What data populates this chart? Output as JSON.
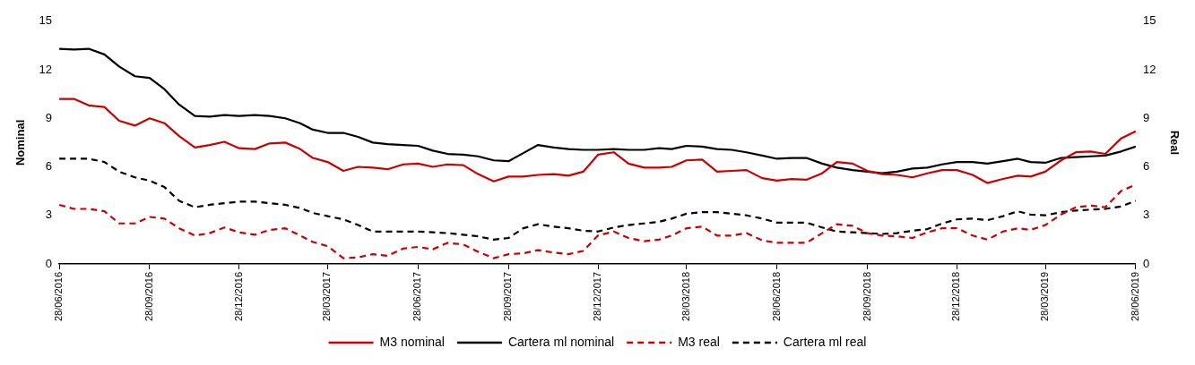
{
  "chart_data": {
    "type": "line",
    "ylabel": "Nominal",
    "y2label": "Real",
    "x": [
      "2016-06-28",
      "2016-07-13",
      "2016-07-28",
      "2016-08-13",
      "2016-08-28",
      "2016-09-13",
      "2016-09-28",
      "2016-10-13",
      "2016-10-28",
      "2016-11-13",
      "2016-11-28",
      "2016-12-13",
      "2016-12-28",
      "2017-01-13",
      "2017-01-28",
      "2017-02-13",
      "2017-02-28",
      "2017-03-13",
      "2017-03-28",
      "2017-04-13",
      "2017-04-28",
      "2017-05-13",
      "2017-05-28",
      "2017-06-13",
      "2017-06-28",
      "2017-07-13",
      "2017-07-28",
      "2017-08-13",
      "2017-08-28",
      "2017-09-13",
      "2017-09-28",
      "2017-10-13",
      "2017-10-28",
      "2017-11-13",
      "2017-11-28",
      "2017-12-13",
      "2017-12-28",
      "2018-01-13",
      "2018-01-28",
      "2018-02-13",
      "2018-02-28",
      "2018-03-13",
      "2018-03-28",
      "2018-04-13",
      "2018-04-28",
      "2018-05-13",
      "2018-05-28",
      "2018-06-13",
      "2018-06-28",
      "2018-07-13",
      "2018-07-28",
      "2018-08-13",
      "2018-08-28",
      "2018-09-13",
      "2018-09-28",
      "2018-10-13",
      "2018-10-28",
      "2018-11-13",
      "2018-11-28",
      "2018-12-13",
      "2018-12-28",
      "2019-01-13",
      "2019-01-28",
      "2019-02-13",
      "2019-02-28",
      "2019-03-13",
      "2019-03-28",
      "2019-04-13",
      "2019-04-28",
      "2019-05-13",
      "2019-05-28",
      "2019-06-13",
      "2019-06-28"
    ],
    "series": [
      {
        "name": "M3 nominal",
        "color": "#cc0000",
        "line_style": "solid",
        "values": [
          10.2,
          10.2,
          9.8,
          9.7,
          8.85,
          8.55,
          9.0,
          8.7,
          7.9,
          7.2,
          7.35,
          7.55,
          7.15,
          7.1,
          7.45,
          7.5,
          7.1,
          6.55,
          6.3,
          5.75,
          6.0,
          5.95,
          5.85,
          6.15,
          6.2,
          6.0,
          6.15,
          6.1,
          5.55,
          5.1,
          5.4,
          5.4,
          5.5,
          5.55,
          5.45,
          5.7,
          6.75,
          6.9,
          6.2,
          5.95,
          5.95,
          6.0,
          6.4,
          6.45,
          5.7,
          5.75,
          5.8,
          5.3,
          5.15,
          5.25,
          5.2,
          5.6,
          6.3,
          6.2,
          5.75,
          5.55,
          5.5,
          5.35,
          5.6,
          5.8,
          5.8,
          5.5,
          5.0,
          5.25,
          5.45,
          5.4,
          5.7,
          6.4,
          6.9,
          6.95,
          6.8,
          7.75,
          8.2
        ]
      },
      {
        "name": "Cartera ml nominal",
        "color": "#000000",
        "line_style": "solid",
        "values": [
          13.3,
          13.25,
          13.3,
          12.95,
          12.2,
          11.6,
          11.5,
          10.8,
          9.85,
          9.15,
          9.1,
          9.2,
          9.15,
          9.2,
          9.15,
          9.0,
          8.7,
          8.3,
          8.1,
          8.1,
          7.85,
          7.5,
          7.4,
          7.35,
          7.3,
          7.0,
          6.8,
          6.75,
          6.65,
          6.4,
          6.35,
          6.85,
          7.35,
          7.2,
          7.1,
          7.05,
          7.05,
          7.1,
          7.05,
          7.05,
          7.15,
          7.1,
          7.3,
          7.25,
          7.1,
          7.05,
          6.9,
          6.7,
          6.5,
          6.55,
          6.55,
          6.2,
          5.95,
          5.8,
          5.7,
          5.6,
          5.7,
          5.9,
          5.95,
          6.15,
          6.3,
          6.3,
          6.2,
          6.35,
          6.5,
          6.3,
          6.25,
          6.55,
          6.6,
          6.65,
          6.7,
          6.95,
          7.25
        ]
      },
      {
        "name": "M3 real",
        "color": "#cc0000",
        "line_style": "dashed",
        "axis": "y2",
        "values": [
          3.65,
          3.4,
          3.4,
          3.25,
          2.5,
          2.5,
          2.9,
          2.8,
          2.2,
          1.75,
          1.9,
          2.25,
          1.95,
          1.8,
          2.1,
          2.2,
          1.75,
          1.35,
          1.1,
          0.35,
          0.4,
          0.6,
          0.5,
          0.95,
          1.05,
          0.9,
          1.3,
          1.2,
          0.75,
          0.35,
          0.6,
          0.65,
          0.85,
          0.7,
          0.6,
          0.8,
          1.75,
          2.0,
          1.6,
          1.4,
          1.5,
          1.75,
          2.2,
          2.3,
          1.75,
          1.75,
          1.9,
          1.45,
          1.3,
          1.3,
          1.3,
          1.9,
          2.45,
          2.35,
          1.9,
          1.75,
          1.7,
          1.6,
          1.95,
          2.2,
          2.2,
          1.75,
          1.5,
          2.0,
          2.2,
          2.1,
          2.4,
          3.05,
          3.5,
          3.6,
          3.5,
          4.5,
          4.9
        ]
      },
      {
        "name": "Cartera ml real",
        "color": "#000000",
        "line_style": "dashed",
        "axis": "y2",
        "values": [
          6.5,
          6.5,
          6.5,
          6.3,
          5.7,
          5.35,
          5.15,
          4.75,
          3.9,
          3.5,
          3.65,
          3.75,
          3.85,
          3.85,
          3.75,
          3.65,
          3.45,
          3.15,
          2.95,
          2.75,
          2.4,
          2.0,
          2.0,
          2.0,
          2.0,
          1.95,
          1.9,
          1.8,
          1.7,
          1.5,
          1.6,
          2.2,
          2.45,
          2.3,
          2.2,
          2.05,
          2.0,
          2.25,
          2.4,
          2.5,
          2.6,
          2.8,
          3.1,
          3.2,
          3.2,
          3.1,
          3.0,
          2.8,
          2.55,
          2.55,
          2.55,
          2.25,
          2.0,
          1.95,
          1.9,
          1.85,
          1.9,
          2.05,
          2.15,
          2.5,
          2.75,
          2.8,
          2.7,
          2.95,
          3.25,
          3.05,
          3.0,
          3.2,
          3.3,
          3.35,
          3.4,
          3.55,
          3.9
        ]
      }
    ],
    "xlim": [
      "2016-06-28",
      "2019-06-28"
    ],
    "xticks": [
      {
        "value": "2016-06-28",
        "label": "28/06/2016"
      },
      {
        "value": "2016-09-28",
        "label": "28/09/2016"
      },
      {
        "value": "2016-12-28",
        "label": "28/12/2016"
      },
      {
        "value": "2017-03-28",
        "label": "28/03/2017"
      },
      {
        "value": "2017-06-28",
        "label": "28/06/2017"
      },
      {
        "value": "2017-09-28",
        "label": "28/09/2017"
      },
      {
        "value": "2017-12-28",
        "label": "28/12/2017"
      },
      {
        "value": "2018-03-28",
        "label": "28/03/2018"
      },
      {
        "value": "2018-06-28",
        "label": "28/06/2018"
      },
      {
        "value": "2018-09-28",
        "label": "28/09/2018"
      },
      {
        "value": "2018-12-28",
        "label": "28/12/2018"
      },
      {
        "value": "2019-03-28",
        "label": "28/03/2019"
      },
      {
        "value": "2019-06-28",
        "label": "28/06/2019"
      }
    ],
    "ylim": [
      0,
      15
    ],
    "yticks": [
      0,
      3,
      6,
      9,
      12,
      15
    ],
    "y2lim": [
      0,
      15
    ],
    "y2ticks": [
      0,
      3,
      6,
      9,
      12,
      15
    ],
    "grid": false,
    "legend": "bottom",
    "marker": "none"
  }
}
